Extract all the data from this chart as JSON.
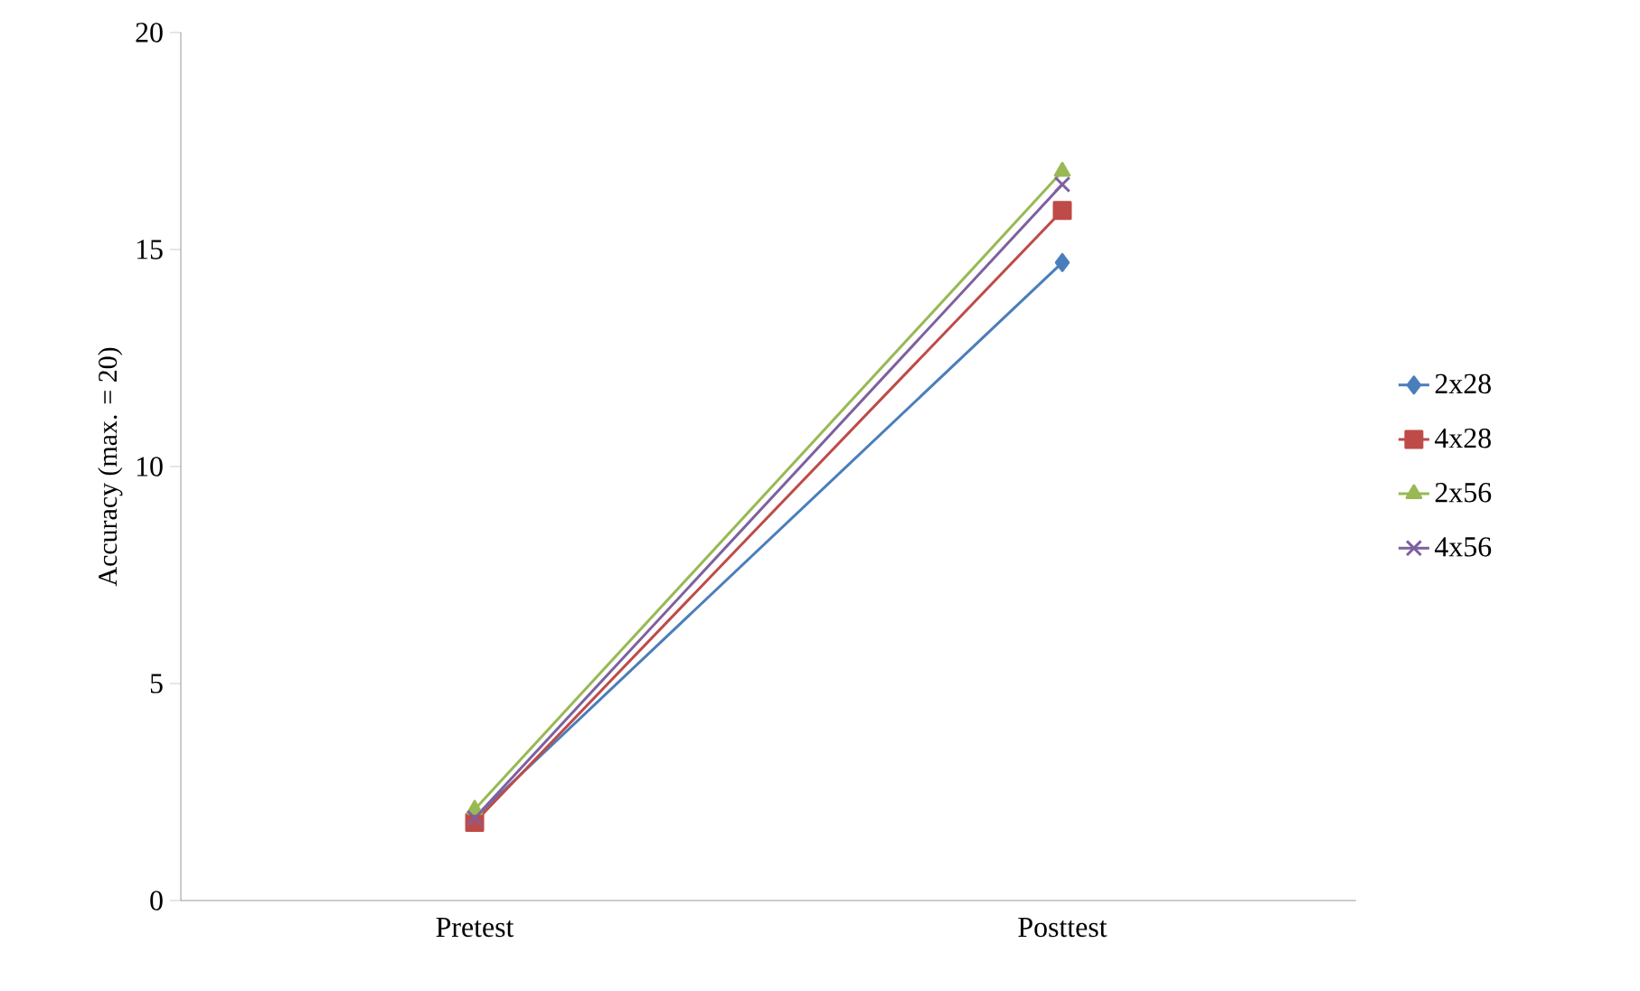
{
  "chart_data": {
    "type": "line",
    "ylabel": "Accuracy (max. = 20)",
    "categories": [
      "Pretest",
      "Posttest"
    ],
    "ylim": [
      0,
      20
    ],
    "yticks": [
      0,
      5,
      10,
      15,
      20
    ],
    "legend": "right",
    "series": [
      {
        "name": "2x28",
        "color": "#4a7ebb",
        "marker": "diamond",
        "values": [
          1.9,
          14.7
        ]
      },
      {
        "name": "4x28",
        "color": "#be4b48",
        "marker": "square",
        "values": [
          1.8,
          15.9
        ]
      },
      {
        "name": "2x56",
        "color": "#98b954",
        "marker": "triangle",
        "values": [
          2.1,
          16.8
        ]
      },
      {
        "name": "4x56",
        "color": "#7d60a0",
        "marker": "cross",
        "values": [
          1.9,
          16.5
        ]
      }
    ]
  }
}
